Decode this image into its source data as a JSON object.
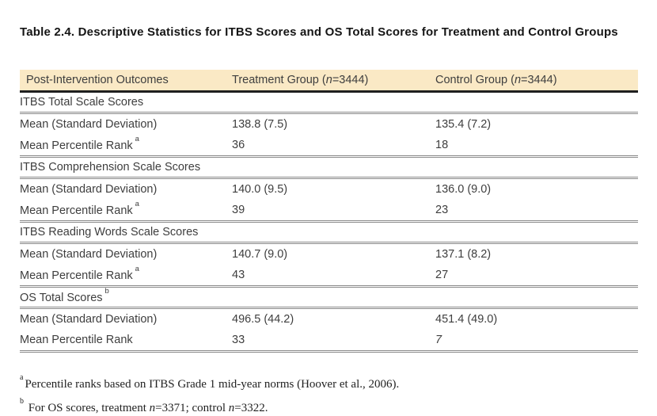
{
  "title": "Table 2.4. Descriptive Statistics for ITBS Scores and OS Total Scores for Treatment and Control Groups",
  "colors": {
    "header_background": "#FAE9C5",
    "header_rule": "#1f1f1f",
    "section_rule": "#8a8a8a",
    "table_text": "#3e3e3e"
  },
  "table": {
    "header": {
      "outcomes": "Post-Intervention Outcomes",
      "treatment": {
        "pre": "Treatment Group (",
        "nvar": "n",
        "post": "=3444)"
      },
      "control": {
        "pre": "Control Group (",
        "nvar": "n",
        "post": "=3444)"
      }
    },
    "sections": [
      {
        "name": "ITBS Total Scale Scores",
        "rows": [
          {
            "label": "Mean (Standard Deviation)",
            "treatment": "138.8 (7.5)",
            "control": "135.4 (7.2)"
          },
          {
            "label": "Mean Percentile Rank",
            "sup": "a",
            "treatment": "36",
            "control": "18"
          }
        ]
      },
      {
        "name": "ITBS Comprehension Scale Scores",
        "rows": [
          {
            "label": "Mean (Standard Deviation)",
            "treatment": "140.0 (9.5)",
            "control": "136.0 (9.0)"
          },
          {
            "label": "Mean Percentile Rank",
            "sup": "a",
            "treatment": "39",
            "control": "23"
          }
        ]
      },
      {
        "name": "ITBS Reading Words Scale Scores",
        "rows": [
          {
            "label": "Mean (Standard Deviation)",
            "treatment": "140.7 (9.0)",
            "control": "137.1 (8.2)"
          },
          {
            "label": "Mean Percentile Rank",
            "sup": "a",
            "treatment": "43",
            "control": "27"
          }
        ]
      },
      {
        "name": "OS Total Scores",
        "sup": "b",
        "rows": [
          {
            "label": "Mean (Standard Deviation)",
            "treatment": "496.5 (44.2)",
            "control": "451.4 (49.0)"
          },
          {
            "label": "Mean Percentile Rank",
            "treatment": "33",
            "control": "7"
          }
        ]
      }
    ]
  },
  "footnotes": {
    "a": {
      "sup": "a",
      "text": "Percentile ranks based on ITBS Grade 1 mid-year norms (Hoover et al., 2006)."
    },
    "b": {
      "sup": "b",
      "p1": " For OS scores, treatment ",
      "n1": "n",
      "p2": "=3371; control ",
      "n2": "n",
      "p3": "=3322."
    }
  }
}
